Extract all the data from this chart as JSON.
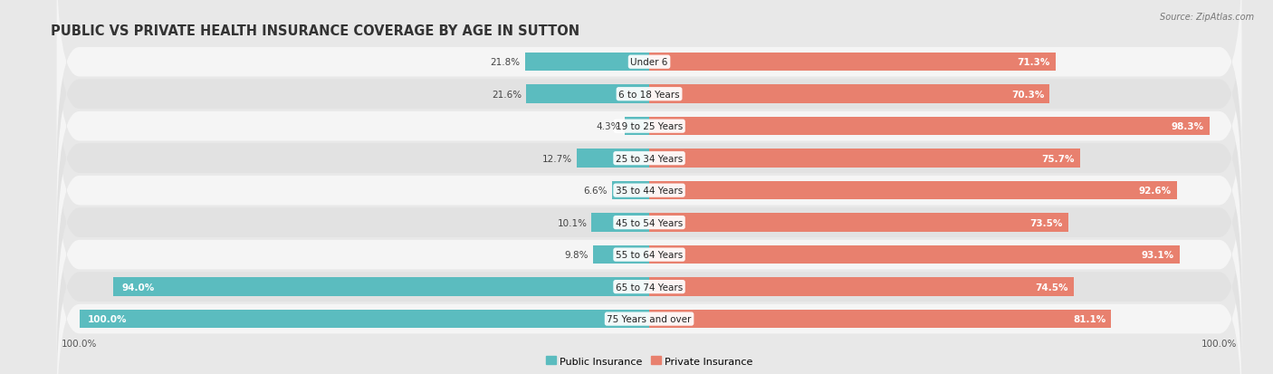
{
  "title": "PUBLIC VS PRIVATE HEALTH INSURANCE COVERAGE BY AGE IN SUTTON",
  "source": "Source: ZipAtlas.com",
  "categories": [
    "Under 6",
    "6 to 18 Years",
    "19 to 25 Years",
    "25 to 34 Years",
    "35 to 44 Years",
    "45 to 54 Years",
    "55 to 64 Years",
    "65 to 74 Years",
    "75 Years and over"
  ],
  "public_values": [
    21.8,
    21.6,
    4.3,
    12.7,
    6.6,
    10.1,
    9.8,
    94.0,
    100.0
  ],
  "private_values": [
    71.3,
    70.3,
    98.3,
    75.7,
    92.6,
    73.5,
    93.1,
    74.5,
    81.1
  ],
  "public_color": "#5bbcbf",
  "private_color": "#e8806e",
  "bg_color": "#e8e8e8",
  "row_bg_colors": [
    "#f5f5f5",
    "#e2e2e2"
  ],
  "bar_height": 0.58,
  "max_value": 100.0,
  "xlim_left": -105,
  "xlim_right": 105,
  "legend_labels": [
    "Public Insurance",
    "Private Insurance"
  ],
  "title_fontsize": 10.5,
  "label_fontsize": 8,
  "value_fontsize": 7.5,
  "source_fontsize": 7,
  "cat_label_fontsize": 7.5
}
